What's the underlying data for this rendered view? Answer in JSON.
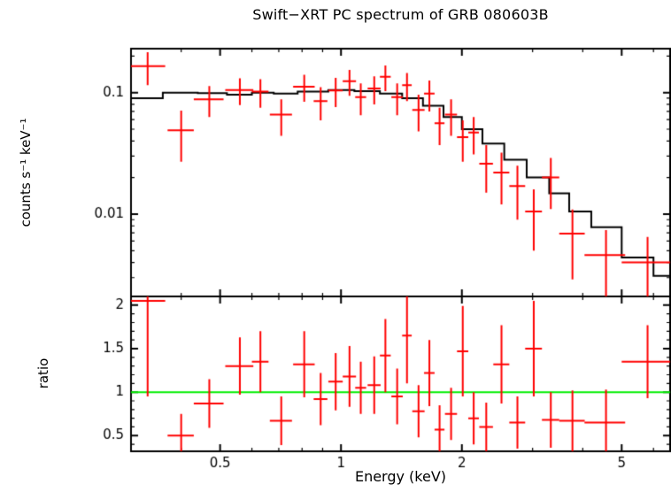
{
  "chart_data": {
    "type": "scatter",
    "title": "Swift−XRT PC spectrum of GRB 080603B",
    "xlabel": "Energy (keV)",
    "x_scale": "log",
    "x_range": [
      0.3,
      6.6
    ],
    "x_ticks": {
      "values": [
        0.5,
        1,
        2,
        5
      ],
      "labels": [
        "0.5",
        "1",
        "2",
        "5"
      ]
    },
    "legend": "none",
    "grid": false,
    "colors": {
      "data": "#ff0000",
      "model": "#000000",
      "reference": "#00ee00",
      "frame": "#000000"
    },
    "panels": [
      {
        "name": "spectrum",
        "ylabel": "counts s⁻¹ keV⁻¹",
        "y_scale": "log",
        "y_range": [
          0.0021,
          0.23
        ],
        "y_ticks": {
          "values": [
            0.01,
            0.1
          ],
          "labels": [
            "0.01",
            "0.1"
          ]
        },
        "data": {
          "energy": [
            0.33,
            0.4,
            0.47,
            0.56,
            0.63,
            0.71,
            0.81,
            0.89,
            0.97,
            1.05,
            1.12,
            1.21,
            1.29,
            1.38,
            1.46,
            1.56,
            1.66,
            1.76,
            1.88,
            2.01,
            2.14,
            2.3,
            2.51,
            2.75,
            3.02,
            3.33,
            3.77,
            4.57,
            5.8
          ],
          "energy_err": [
            0.035,
            0.03,
            0.04,
            0.045,
            0.03,
            0.045,
            0.05,
            0.035,
            0.04,
            0.04,
            0.035,
            0.045,
            0.04,
            0.045,
            0.04,
            0.055,
            0.05,
            0.05,
            0.065,
            0.065,
            0.065,
            0.09,
            0.115,
            0.125,
            0.145,
            0.165,
            0.275,
            0.53,
            0.8
          ],
          "counts": [
            0.165,
            0.049,
            0.088,
            0.105,
            0.102,
            0.066,
            0.112,
            0.085,
            0.104,
            0.124,
            0.092,
            0.108,
            0.135,
            0.092,
            0.115,
            0.072,
            0.098,
            0.056,
            0.066,
            0.043,
            0.047,
            0.026,
            0.022,
            0.017,
            0.0105,
            0.02,
            0.0069,
            0.0046,
            0.004
          ],
          "counts_err": [
            0.05,
            0.022,
            0.025,
            0.026,
            0.027,
            0.022,
            0.028,
            0.026,
            0.028,
            0.03,
            0.027,
            0.028,
            0.032,
            0.027,
            0.03,
            0.024,
            0.028,
            0.019,
            0.022,
            0.016,
            0.016,
            0.011,
            0.01,
            0.008,
            0.0055,
            0.009,
            0.004,
            0.0028,
            0.0025
          ]
        },
        "model": {
          "edges": [
            0.3,
            0.36,
            0.44,
            0.52,
            0.6,
            0.68,
            0.78,
            0.93,
            1.08,
            1.25,
            1.42,
            1.6,
            1.8,
            2.0,
            2.25,
            2.55,
            2.9,
            3.3,
            3.7,
            4.2,
            5.0,
            6.0,
            6.6
          ],
          "values": [
            0.09,
            0.1,
            0.099,
            0.096,
            0.1,
            0.098,
            0.102,
            0.105,
            0.103,
            0.098,
            0.09,
            0.078,
            0.063,
            0.05,
            0.038,
            0.028,
            0.02,
            0.0148,
            0.0105,
            0.0078,
            0.0044,
            0.0031
          ]
        }
      },
      {
        "name": "ratio",
        "ylabel": "ratio",
        "y_scale": "linear",
        "y_range": [
          0.32,
          2.1
        ],
        "y_ticks": {
          "values": [
            0.5,
            1,
            1.5,
            2
          ],
          "labels": [
            "0.5",
            "1",
            "1.5",
            "2"
          ]
        },
        "reference_line": 1,
        "data": {
          "energy": [
            0.33,
            0.4,
            0.47,
            0.56,
            0.63,
            0.71,
            0.81,
            0.89,
            0.97,
            1.05,
            1.12,
            1.21,
            1.29,
            1.38,
            1.46,
            1.56,
            1.66,
            1.76,
            1.88,
            2.01,
            2.14,
            2.3,
            2.51,
            2.75,
            3.02,
            3.33,
            3.77,
            4.57,
            5.8
          ],
          "energy_err": [
            0.035,
            0.03,
            0.04,
            0.045,
            0.03,
            0.045,
            0.05,
            0.035,
            0.04,
            0.04,
            0.035,
            0.045,
            0.04,
            0.045,
            0.04,
            0.055,
            0.05,
            0.05,
            0.065,
            0.065,
            0.065,
            0.09,
            0.115,
            0.125,
            0.145,
            0.165,
            0.275,
            0.53,
            0.8
          ],
          "ratio": [
            2.05,
            0.5,
            0.87,
            1.3,
            1.35,
            0.67,
            1.32,
            0.92,
            1.12,
            1.18,
            1.05,
            1.08,
            1.42,
            0.95,
            1.65,
            0.78,
            1.22,
            0.57,
            0.75,
            1.47,
            0.7,
            0.6,
            1.32,
            0.65,
            1.5,
            0.68,
            0.67,
            0.65,
            1.35
          ],
          "ratio_err": [
            1.1,
            0.25,
            0.28,
            0.33,
            0.35,
            0.28,
            0.38,
            0.3,
            0.33,
            0.35,
            0.3,
            0.33,
            0.42,
            0.32,
            0.55,
            0.3,
            0.38,
            0.28,
            0.3,
            0.52,
            0.3,
            0.28,
            0.45,
            0.3,
            0.55,
            0.32,
            0.35,
            0.38,
            0.42
          ]
        }
      }
    ]
  }
}
